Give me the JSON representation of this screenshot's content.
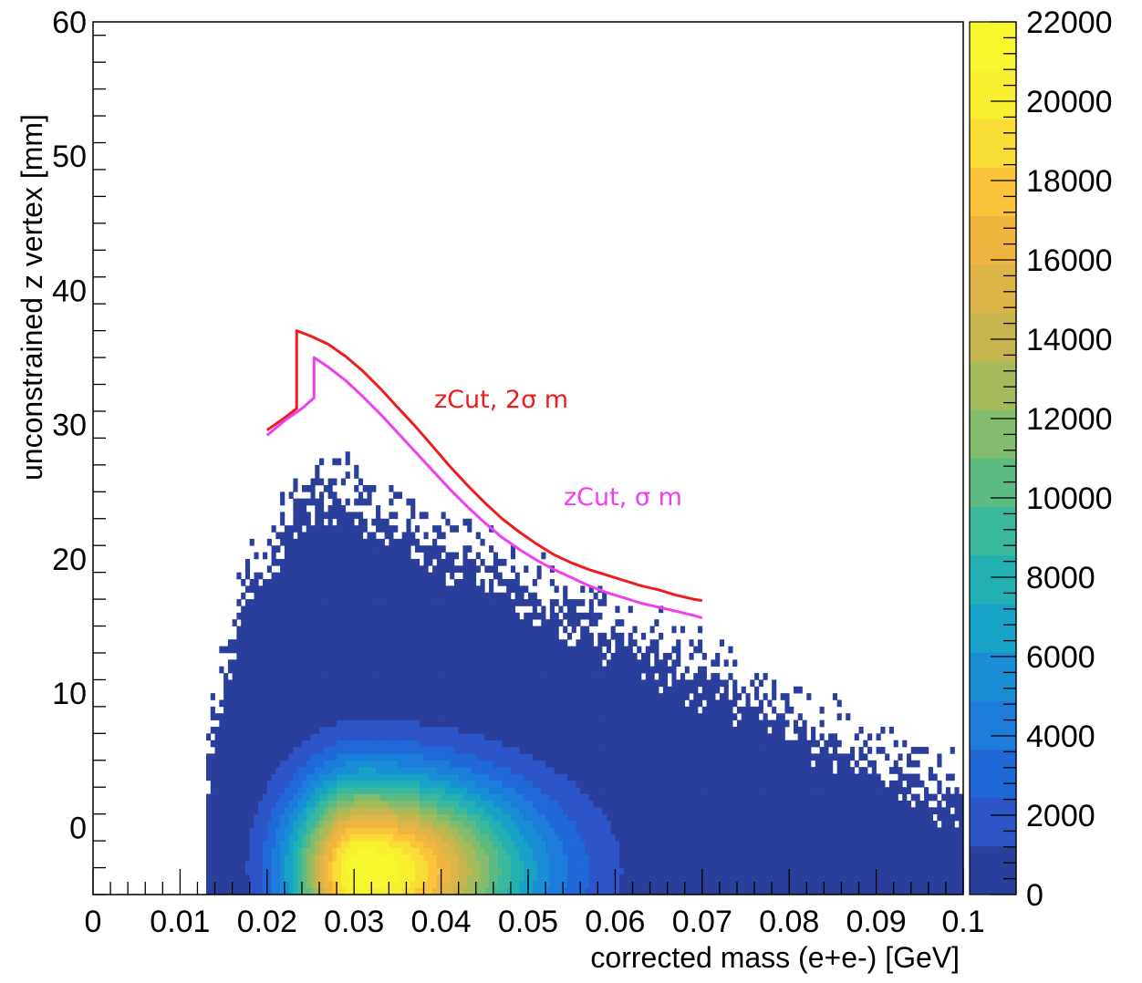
{
  "chart_data": {
    "type": "heatmap",
    "xlabel": "corrected mass (e+e-) [GeV]",
    "ylabel": "unconstrained z vertex [mm]",
    "xlim": [
      0,
      0.1
    ],
    "ylim": [
      -5,
      60
    ],
    "x_ticks": [
      "0",
      "0.01",
      "0.02",
      "0.03",
      "0.04",
      "0.05",
      "0.06",
      "0.07",
      "0.08",
      "0.09",
      "0.1"
    ],
    "y_ticks": [
      "0",
      "10",
      "20",
      "30",
      "40",
      "50",
      "60"
    ],
    "colorbar": {
      "range": [
        0,
        22000
      ],
      "tick_labels": [
        "0",
        "2000",
        "4000",
        "6000",
        "8000",
        "10000",
        "12000",
        "14000",
        "16000",
        "18000",
        "20000",
        "22000"
      ],
      "palette": [
        "#2a3f9c",
        "#2c55c7",
        "#2068d7",
        "#1d7cd9",
        "#1a8ed4",
        "#17a2c8",
        "#22b0b3",
        "#3ab89c",
        "#5cbb82",
        "#82bc6c",
        "#a5ba5b",
        "#c4b54f",
        "#ddb447",
        "#f0b53e",
        "#fbc43b",
        "#f9dc35",
        "#f7ef30",
        "#f5f82e"
      ]
    },
    "grid": false,
    "legend": "none",
    "series": [
      {
        "name": "zCut, 2σ m",
        "color": "#ee1c1c",
        "x": [
          0.02,
          0.022,
          0.023,
          0.0234,
          0.0234,
          0.025,
          0.027,
          0.029,
          0.031,
          0.033,
          0.035,
          0.037,
          0.039,
          0.041,
          0.043,
          0.045,
          0.047,
          0.049,
          0.051,
          0.053,
          0.055,
          0.057,
          0.059,
          0.061,
          0.063,
          0.065,
          0.067,
          0.069,
          0.07
        ],
        "y": [
          29.6,
          30.5,
          31.0,
          31.2,
          37.0,
          36.6,
          36.0,
          35.1,
          34.0,
          32.7,
          31.3,
          29.9,
          28.4,
          26.9,
          25.5,
          24.2,
          23.0,
          22.0,
          21.1,
          20.3,
          19.7,
          19.2,
          18.8,
          18.4,
          18.0,
          17.7,
          17.3,
          17.0,
          16.9
        ]
      },
      {
        "name": "zCut, σ m",
        "color": "#f03df0",
        "x": [
          0.02,
          0.022,
          0.024,
          0.0254,
          0.0254,
          0.027,
          0.029,
          0.031,
          0.033,
          0.035,
          0.037,
          0.039,
          0.041,
          0.043,
          0.045,
          0.047,
          0.049,
          0.051,
          0.053,
          0.055,
          0.057,
          0.059,
          0.061,
          0.063,
          0.065,
          0.067,
          0.069,
          0.07
        ],
        "y": [
          29.2,
          30.3,
          31.2,
          32.0,
          35.0,
          34.3,
          33.3,
          32.1,
          30.8,
          29.4,
          28.0,
          26.6,
          25.2,
          23.9,
          22.7,
          21.6,
          20.7,
          19.9,
          19.2,
          18.6,
          18.0,
          17.5,
          17.1,
          16.7,
          16.4,
          16.1,
          15.8,
          15.6
        ]
      }
    ]
  }
}
